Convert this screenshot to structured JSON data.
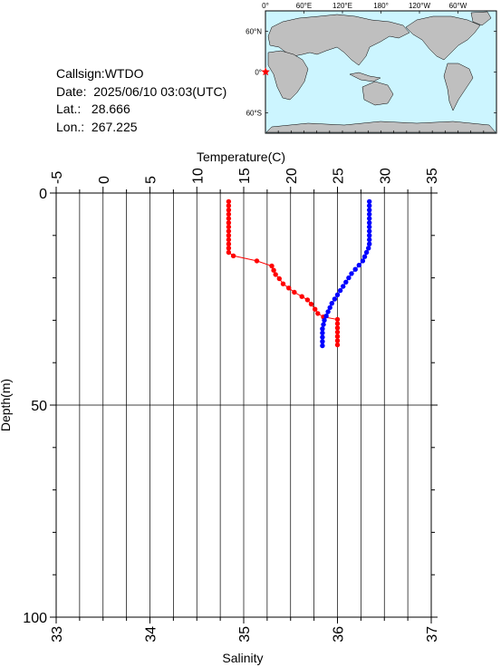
{
  "info": {
    "callsign": "Callsign:WTDO",
    "date": "Date:  2025/06/10 03:03(UTC)",
    "lat": "Lat.:   28.666",
    "lon": "Lon.:  267.225"
  },
  "map": {
    "top_labels": [
      "0°",
      "60°E",
      "120°E",
      "180°",
      "120°W",
      "60°W"
    ],
    "side_labels": [
      "60°N",
      "0°",
      "60°S"
    ],
    "ocean_color": "#ccf5ff",
    "land_color": "#bfbfbf",
    "marker_color": "#ff0000"
  },
  "chart_data": {
    "type": "line",
    "top_axis": {
      "label": "Temperature(C)",
      "range": [
        -5,
        35
      ],
      "ticks": [
        -5,
        0,
        5,
        10,
        15,
        20,
        25,
        30,
        35
      ]
    },
    "bottom_axis": {
      "label": "Salinity",
      "range": [
        33,
        37
      ],
      "ticks": [
        33,
        34,
        35,
        36,
        37
      ]
    },
    "left_axis": {
      "label": "Depth(m)",
      "range": [
        0,
        100
      ],
      "inverted": true,
      "ticks": [
        0,
        50,
        100
      ]
    },
    "series": [
      {
        "color": "#ff0000",
        "axis": "salinity",
        "points": [
          [
            34.84,
            2
          ],
          [
            34.84,
            3
          ],
          [
            34.84,
            4
          ],
          [
            34.84,
            5
          ],
          [
            34.84,
            6
          ],
          [
            34.84,
            7
          ],
          [
            34.84,
            8
          ],
          [
            34.84,
            9
          ],
          [
            34.84,
            10
          ],
          [
            34.84,
            11
          ],
          [
            34.84,
            12
          ],
          [
            34.84,
            13
          ],
          [
            34.84,
            14
          ],
          [
            34.89,
            14.8
          ],
          [
            35.14,
            16
          ],
          [
            35.3,
            17.2
          ],
          [
            35.32,
            18.2
          ],
          [
            35.34,
            19.2
          ],
          [
            35.38,
            20.2
          ],
          [
            35.42,
            21.4
          ],
          [
            35.48,
            22.4
          ],
          [
            35.54,
            23.4
          ],
          [
            35.62,
            24.4
          ],
          [
            35.68,
            25.2
          ],
          [
            35.72,
            26.2
          ],
          [
            35.76,
            27.4
          ],
          [
            35.79,
            28.4
          ],
          [
            35.85,
            29.2
          ],
          [
            36.0,
            29.8
          ],
          [
            36.0,
            30.8
          ],
          [
            36.0,
            31.8
          ],
          [
            36.0,
            32.8
          ],
          [
            36.0,
            33.8
          ],
          [
            36.0,
            34.8
          ],
          [
            36.0,
            35.8
          ]
        ]
      },
      {
        "color": "#0000ff",
        "axis": "temperature",
        "points": [
          [
            28.4,
            2
          ],
          [
            28.4,
            3
          ],
          [
            28.4,
            4
          ],
          [
            28.4,
            5
          ],
          [
            28.4,
            6
          ],
          [
            28.4,
            7
          ],
          [
            28.4,
            8
          ],
          [
            28.4,
            9
          ],
          [
            28.4,
            10
          ],
          [
            28.4,
            11
          ],
          [
            28.4,
            12
          ],
          [
            28.3,
            13
          ],
          [
            28.1,
            14
          ],
          [
            27.9,
            15
          ],
          [
            27.7,
            16
          ],
          [
            27.3,
            17
          ],
          [
            26.9,
            18
          ],
          [
            26.5,
            19
          ],
          [
            26.2,
            20
          ],
          [
            25.9,
            21
          ],
          [
            25.6,
            22
          ],
          [
            25.3,
            23
          ],
          [
            25.0,
            24
          ],
          [
            24.7,
            25
          ],
          [
            24.4,
            26
          ],
          [
            24.2,
            27
          ],
          [
            24.0,
            28
          ],
          [
            23.8,
            29
          ],
          [
            23.6,
            30
          ],
          [
            23.5,
            31
          ],
          [
            23.4,
            32
          ],
          [
            23.4,
            33
          ],
          [
            23.4,
            34
          ],
          [
            23.4,
            35
          ],
          [
            23.4,
            36
          ]
        ]
      }
    ]
  }
}
